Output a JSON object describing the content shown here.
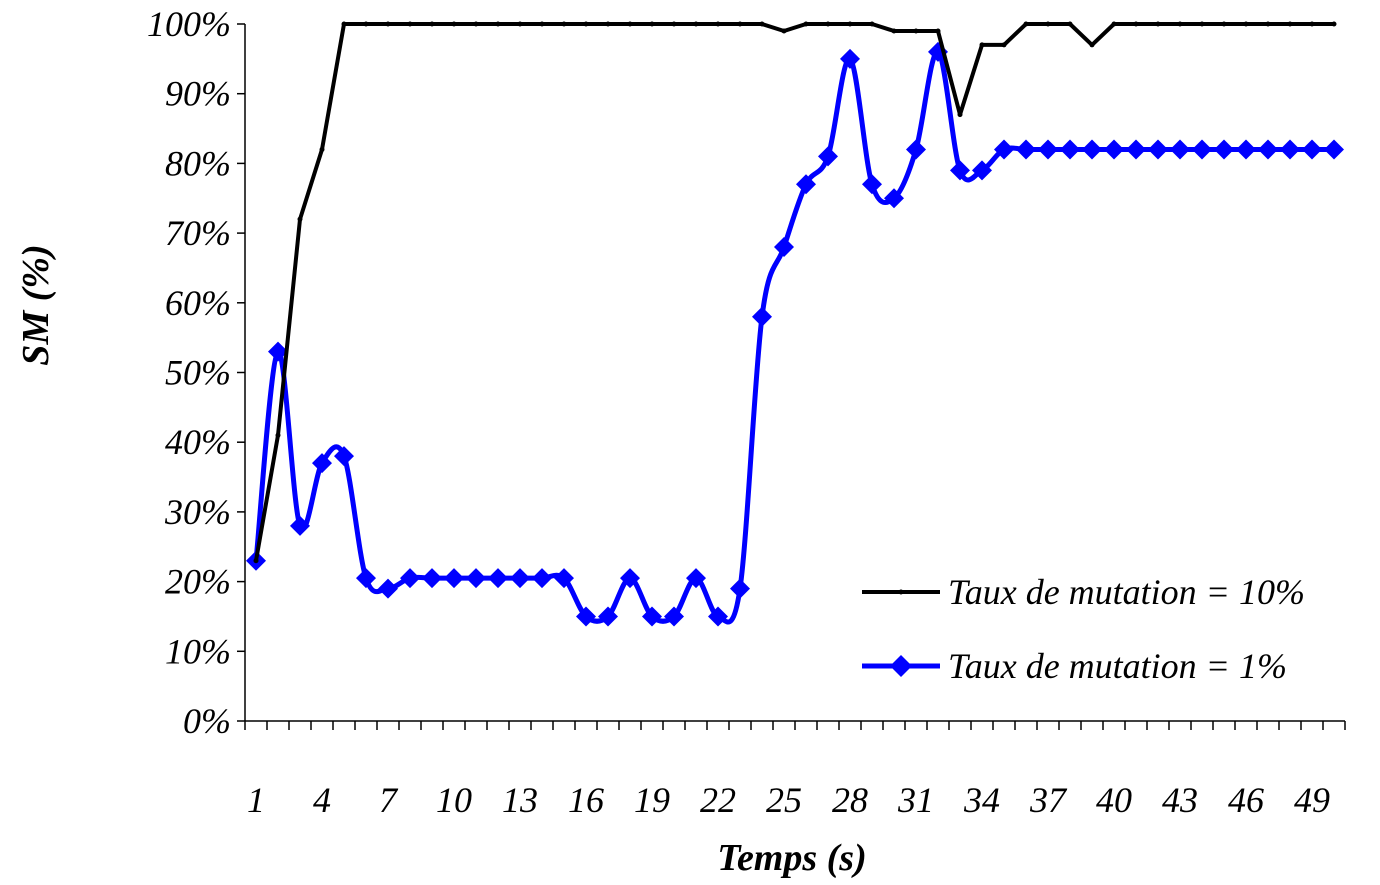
{
  "chart_data": {
    "type": "line",
    "xlabel": "Temps (s)",
    "ylabel": "SM (%)",
    "ylim": [
      0,
      100
    ],
    "y_ticks": [
      "0%",
      "10%",
      "20%",
      "30%",
      "40%",
      "50%",
      "60%",
      "70%",
      "80%",
      "90%",
      "100%"
    ],
    "x": [
      1,
      2,
      3,
      4,
      5,
      6,
      7,
      8,
      9,
      10,
      11,
      12,
      13,
      14,
      15,
      16,
      17,
      18,
      19,
      20,
      21,
      22,
      23,
      24,
      25,
      26,
      27,
      28,
      29,
      30,
      31,
      32,
      33,
      34,
      35,
      36,
      37,
      38,
      39,
      40,
      41,
      42,
      43,
      44,
      45,
      46,
      47,
      48,
      49,
      50
    ],
    "x_tick_labels": [
      "1",
      "4",
      "7",
      "10",
      "13",
      "16",
      "19",
      "22",
      "25",
      "28",
      "31",
      "34",
      "37",
      "40",
      "43",
      "46",
      "49"
    ],
    "legend_position": "bottom-right",
    "grid": false,
    "series": [
      {
        "name": "Taux de mutation = 10%",
        "color": "#000000",
        "marker": "dot",
        "values": [
          23,
          41,
          72,
          82,
          100,
          100,
          100,
          100,
          100,
          100,
          100,
          100,
          100,
          100,
          100,
          100,
          100,
          100,
          100,
          100,
          100,
          100,
          100,
          100,
          99,
          100,
          100,
          100,
          100,
          99,
          99,
          99,
          87,
          97,
          97,
          100,
          100,
          100,
          97,
          100,
          100,
          100,
          100,
          100,
          100,
          100,
          100,
          100,
          100,
          100
        ]
      },
      {
        "name": "Taux de mutation = 1%",
        "color": "#0000ff",
        "marker": "diamond",
        "values": [
          23,
          53,
          28,
          37,
          38,
          20.5,
          19,
          20.5,
          20.5,
          20.5,
          20.5,
          20.5,
          20.5,
          20.5,
          20.5,
          15,
          15,
          20.5,
          15,
          15,
          20.5,
          15,
          19,
          58,
          68,
          77,
          81,
          95,
          77,
          75,
          82,
          96,
          79,
          79,
          82,
          82,
          82,
          82,
          82,
          82,
          82,
          82,
          82,
          82,
          82,
          82,
          82,
          82,
          82,
          82
        ]
      }
    ]
  }
}
